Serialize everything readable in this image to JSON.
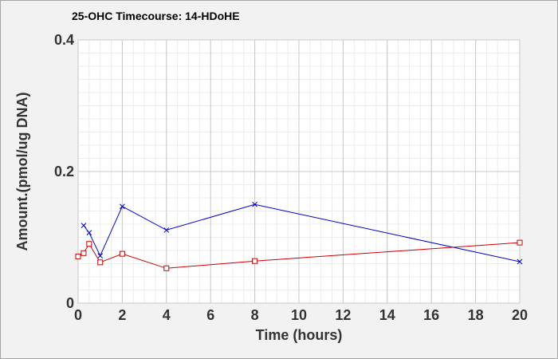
{
  "chart_data": {
    "type": "line",
    "title": "25-OHC Timecourse: 14-HDoHE",
    "xlabel": "Time (hours)",
    "ylabel": "Amount.(pmol/ug DNA)",
    "xlim": [
      0,
      20
    ],
    "ylim": [
      0,
      0.4
    ],
    "x_ticks": [
      0,
      2,
      4,
      6,
      8,
      10,
      12,
      14,
      16,
      18,
      20
    ],
    "x_minor_step": 0.5,
    "y_ticks": [
      0,
      0.2,
      0.4
    ],
    "y_tick_labels": [
      "0",
      "0.2",
      "0.4"
    ],
    "y_minor_step": 0.02,
    "grid": true,
    "series": [
      {
        "color": "#0000cc",
        "marker": "x",
        "x": [
          0.25,
          0.5,
          1,
          2,
          4,
          8,
          20
        ],
        "y": [
          0.118,
          0.107,
          0.072,
          0.147,
          0.111,
          0.15,
          0.063
        ]
      },
      {
        "color": "#cc0000",
        "marker": "square",
        "x": [
          0,
          0.25,
          0.5,
          1,
          2,
          4,
          8,
          20
        ],
        "y": [
          0.071,
          0.076,
          0.09,
          0.062,
          0.075,
          0.053,
          0.064,
          0.092
        ]
      }
    ]
  }
}
